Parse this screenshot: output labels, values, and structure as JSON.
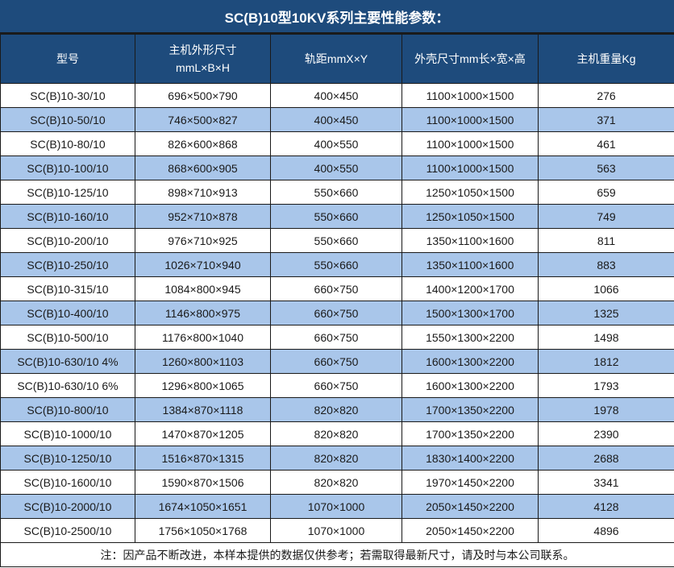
{
  "title": "SC(B)10型10KV系列主要性能参数：",
  "colors": {
    "header_bg": "#1e4b7c",
    "alt_row_bg": "#a9c6ea",
    "border_color": "#1a1a1a",
    "text_color": "#1a1a1a",
    "header_text": "#ffffff"
  },
  "table": {
    "columns": [
      "型号",
      "主机外形尺寸\nmmL×B×H",
      "轨距mmX×Y",
      "外壳尺寸mm长×宽×高",
      "主机重量Kg"
    ],
    "rows": [
      [
        "SC(B)10-30/10",
        "696×500×790",
        "400×450",
        "1100×1000×1500",
        "276"
      ],
      [
        "SC(B)10-50/10",
        "746×500×827",
        "400×450",
        "1100×1000×1500",
        "371"
      ],
      [
        "SC(B)10-80/10",
        "826×600×868",
        "400×550",
        "1100×1000×1500",
        "461"
      ],
      [
        "SC(B)10-100/10",
        "868×600×905",
        "400×550",
        "1100×1000×1500",
        "563"
      ],
      [
        "SC(B)10-125/10",
        "898×710×913",
        "550×660",
        "1250×1050×1500",
        "659"
      ],
      [
        "SC(B)10-160/10",
        "952×710×878",
        "550×660",
        "1250×1050×1500",
        "749"
      ],
      [
        "SC(B)10-200/10",
        "976×710×925",
        "550×660",
        "1350×1100×1600",
        "811"
      ],
      [
        "SC(B)10-250/10",
        "1026×710×940",
        "550×660",
        "1350×1100×1600",
        "883"
      ],
      [
        "SC(B)10-315/10",
        "1084×800×945",
        "660×750",
        "1400×1200×1700",
        "1066"
      ],
      [
        "SC(B)10-400/10",
        "1146×800×975",
        "660×750",
        "1500×1300×1700",
        "1325"
      ],
      [
        "SC(B)10-500/10",
        "1176×800×1040",
        "660×750",
        "1550×1300×2200",
        "1498"
      ],
      [
        "SC(B)10-630/10 4%",
        "1260×800×1103",
        "660×750",
        "1600×1300×2200",
        "1812"
      ],
      [
        "SC(B)10-630/10 6%",
        "1296×800×1065",
        "660×750",
        "1600×1300×2200",
        "1793"
      ],
      [
        "SC(B)10-800/10",
        "1384×870×1118",
        "820×820",
        "1700×1350×2200",
        "1978"
      ],
      [
        "SC(B)10-1000/10",
        "1470×870×1205",
        "820×820",
        "1700×1350×2200",
        "2390"
      ],
      [
        "SC(B)10-1250/10",
        "1516×870×1315",
        "820×820",
        "1830×1400×2200",
        "2688"
      ],
      [
        "SC(B)10-1600/10",
        "1590×870×1506",
        "820×820",
        "1970×1450×2200",
        "3341"
      ],
      [
        "SC(B)10-2000/10",
        "1674×1050×1651",
        "1070×1000",
        "2050×1450×2200",
        "4128"
      ],
      [
        "SC(B)10-2500/10",
        "1756×1050×1768",
        "1070×1000",
        "2050×1450×2200",
        "4896"
      ]
    ]
  },
  "note": "注：因产品不断改进，本样本提供的数据仅供参考；若需取得最新尺寸，请及时与本公司联系。"
}
